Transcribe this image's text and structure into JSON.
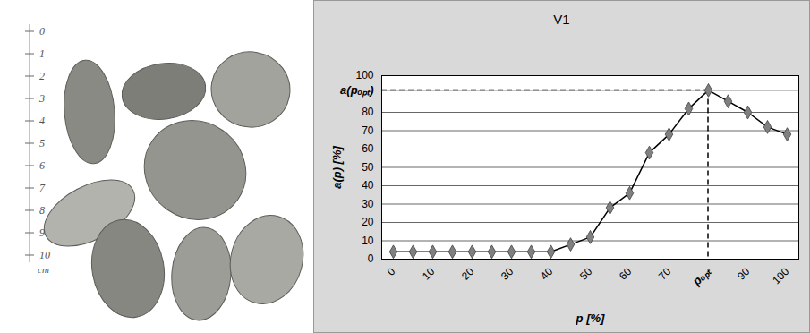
{
  "chart_data": {
    "type": "line",
    "title": "V1",
    "x_label": "p [%]",
    "y_label": "a(p) [%]",
    "categories": [
      "0",
      null,
      "10",
      null,
      "20",
      null,
      "30",
      null,
      "40",
      null,
      "50",
      null,
      "60",
      null,
      "70",
      null,
      "pₒₚₜ",
      null,
      "90",
      null,
      "100"
    ],
    "values": [
      4,
      4,
      4,
      4,
      4,
      4,
      4,
      4,
      4,
      8,
      12,
      28,
      36,
      58,
      68,
      82,
      92,
      86,
      80,
      72,
      68
    ],
    "ylim": [
      0,
      100
    ],
    "yticks": [
      0,
      10,
      20,
      30,
      40,
      50,
      60,
      70,
      80,
      {
        "value": 92,
        "label": "a(pₒₚₜ)"
      },
      100
    ],
    "grid": true,
    "color": "#808080",
    "marker": "diamond",
    "line_style": "solid"
  },
  "ruler": {
    "labels": [
      "0",
      "1",
      "2",
      "3",
      "4",
      "5",
      "6",
      "7",
      "8",
      "9",
      "10"
    ],
    "unit": "cm"
  }
}
